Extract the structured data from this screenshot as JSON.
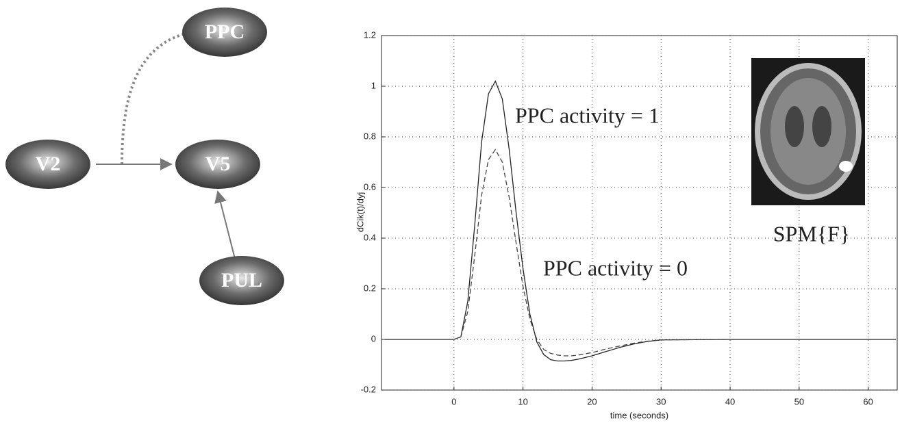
{
  "diagram": {
    "nodes": [
      {
        "label": "PPC"
      },
      {
        "label": "V2"
      },
      {
        "label": "V5"
      },
      {
        "label": "PUL"
      }
    ]
  },
  "chart_data": {
    "type": "line",
    "xlabel": "time (seconds)",
    "ylabel": "dCik(t)/dyj",
    "x": [
      -10,
      0,
      1,
      2,
      3,
      4,
      5,
      6,
      7,
      8,
      9,
      10,
      11,
      12,
      13,
      14,
      15,
      16,
      17,
      18,
      20,
      22,
      24,
      26,
      28,
      30,
      40,
      50,
      64
    ],
    "series": [
      {
        "color": "#222222",
        "linestyle": "solid",
        "values": [
          0,
          0,
          0.01,
          0.15,
          0.45,
          0.78,
          0.97,
          1.02,
          0.95,
          0.75,
          0.5,
          0.28,
          0.1,
          -0.01,
          -0.06,
          -0.08,
          -0.085,
          -0.085,
          -0.083,
          -0.078,
          -0.065,
          -0.048,
          -0.032,
          -0.018,
          -0.008,
          -0.002,
          0,
          0,
          0
        ]
      },
      {
        "color": "#444444",
        "linestyle": "dashed",
        "values": [
          0,
          0,
          0.01,
          0.11,
          0.33,
          0.57,
          0.71,
          0.75,
          0.7,
          0.56,
          0.38,
          0.21,
          0.08,
          0,
          -0.04,
          -0.055,
          -0.062,
          -0.065,
          -0.065,
          -0.062,
          -0.052,
          -0.038,
          -0.026,
          -0.015,
          -0.007,
          -0.002,
          0,
          0,
          0
        ]
      }
    ],
    "xlim": [
      -10.5,
      64.2
    ],
    "xticks": [
      0,
      10,
      20,
      30,
      40,
      50,
      60
    ],
    "ylim": [
      -0.2,
      1.2
    ],
    "yticks": [
      -0.2,
      0,
      0.2,
      0.4,
      0.6,
      0.8,
      1,
      1.2
    ],
    "grid": true,
    "annotations": [
      "PPC activity = 1",
      "PPC activity = 0",
      "SPM{F}"
    ]
  }
}
